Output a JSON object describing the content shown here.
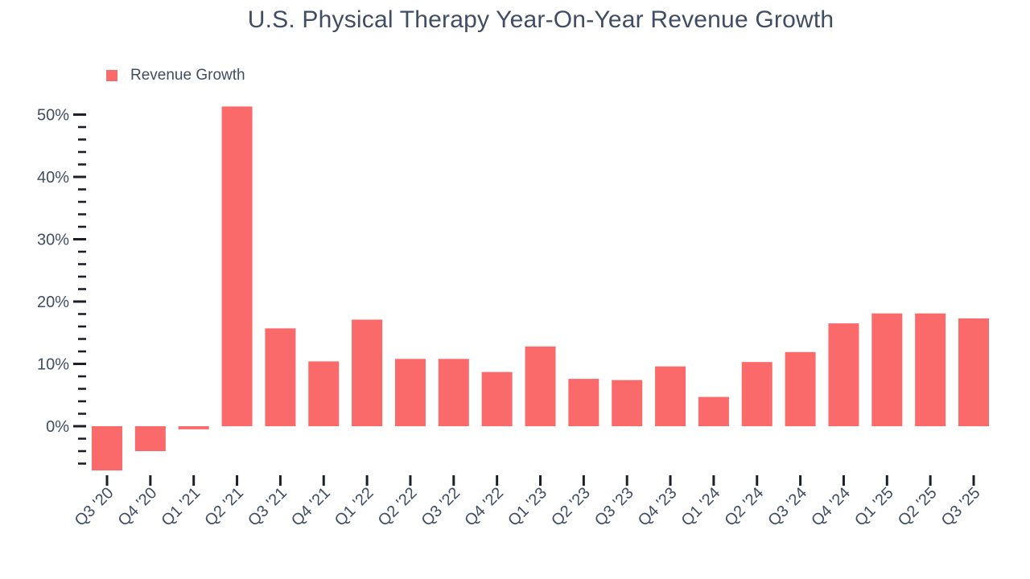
{
  "chart_data": {
    "type": "bar",
    "title": "U.S. Physical Therapy Year-On-Year Revenue Growth",
    "legend": [
      {
        "label": "Revenue Growth",
        "color": "#fb6a6b"
      }
    ],
    "legend_position": "top-left",
    "categories": [
      "Q3 '20",
      "Q4 '20",
      "Q1 '21",
      "Q2 '21",
      "Q3 '21",
      "Q4 '21",
      "Q1 '22",
      "Q2 '22",
      "Q3 '22",
      "Q4 '22",
      "Q1 '23",
      "Q2 '23",
      "Q3 '23",
      "Q4 '23",
      "Q1 '24",
      "Q2 '24",
      "Q3 '24",
      "Q4 '24",
      "Q1 '25",
      "Q2 '25",
      "Q3 '25"
    ],
    "values": [
      -7.1,
      -4.0,
      -0.5,
      51.3,
      15.7,
      10.4,
      17.1,
      10.8,
      10.8,
      8.7,
      12.8,
      7.6,
      7.4,
      9.6,
      4.7,
      10.3,
      11.9,
      16.5,
      18.1,
      18.1,
      17.3
    ],
    "value_unit": "%",
    "xlabel": "",
    "ylabel": "",
    "ylim": [
      -8,
      52
    ],
    "yticks_major": [
      0,
      10,
      20,
      30,
      40,
      50
    ],
    "ytick_labels": [
      "0%",
      "10%",
      "20%",
      "30%",
      "40%",
      "50%"
    ],
    "ytick_minor_step": 2,
    "ytick_minor_range": [
      -6,
      48
    ],
    "grid": "off",
    "colors": {
      "bar": "#fb6a6b",
      "text": "#414d63",
      "tick": "#1c2026",
      "background": "#ffffff"
    }
  }
}
